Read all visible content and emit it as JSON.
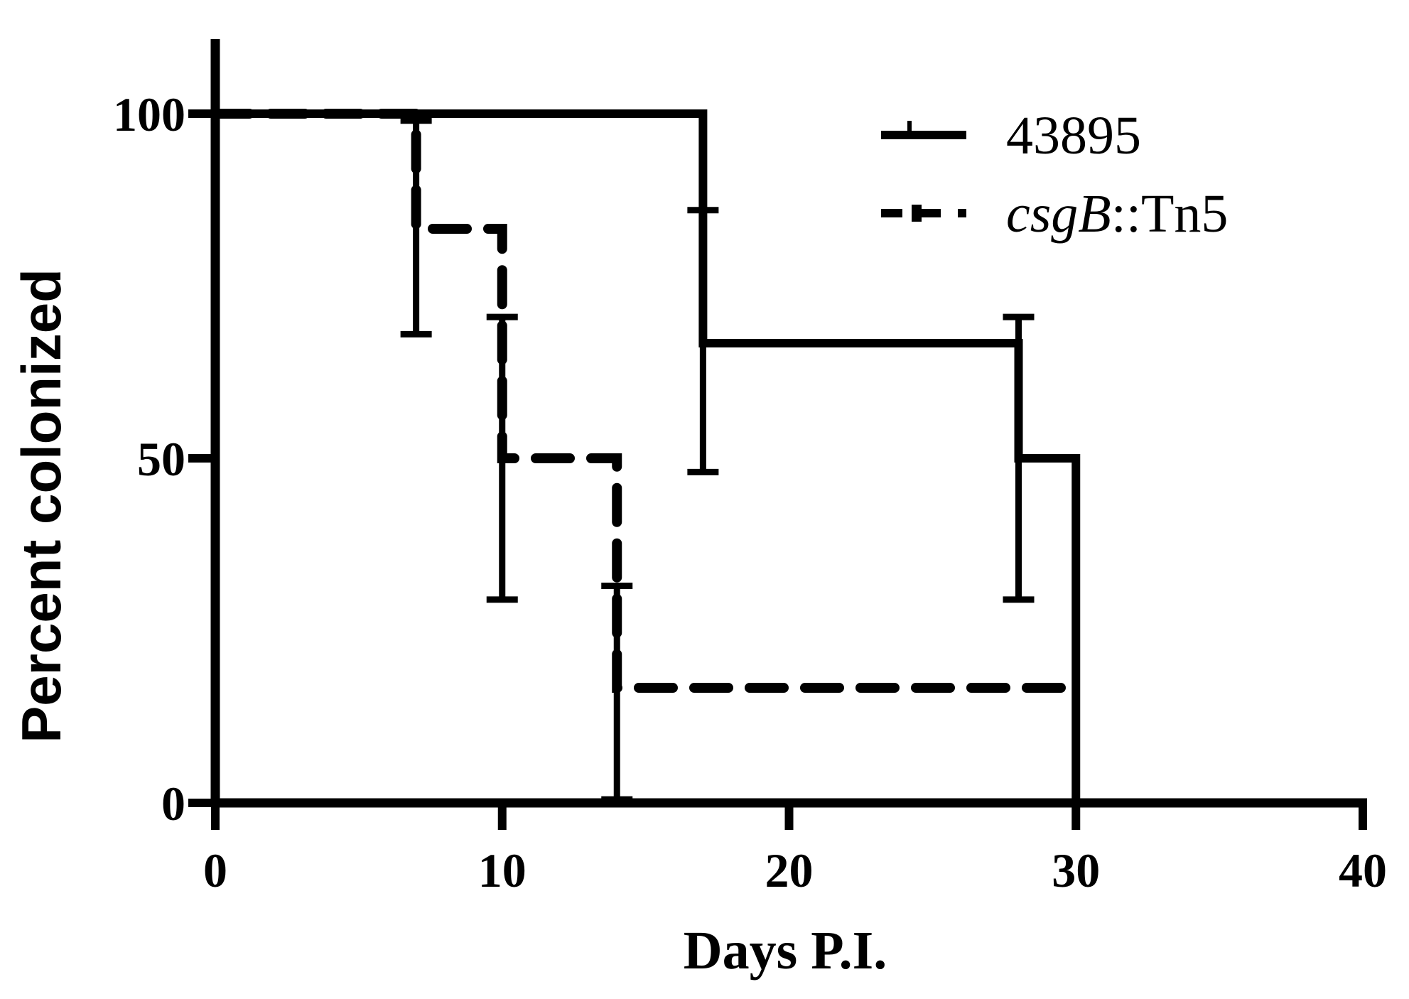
{
  "chart_data": {
    "type": "line",
    "subtype": "kaplan-meier-step",
    "title": "",
    "xlabel": "Days P.I.",
    "ylabel": "Percent colonized",
    "xlim": [
      0,
      40
    ],
    "ylim": [
      0,
      110
    ],
    "xticks": [
      0,
      10,
      20,
      30,
      40
    ],
    "yticks": [
      0,
      50,
      100
    ],
    "x_tick_labels": [
      "0",
      "10",
      "20",
      "30",
      "40"
    ],
    "y_tick_labels": [
      "0",
      "50",
      "100"
    ],
    "grid": false,
    "legend_position": "top-right",
    "series": [
      {
        "name": "43895",
        "legend_main": "43895",
        "legend_italic": "",
        "legend_rest": "",
        "line_style": "solid",
        "color": "#000000",
        "steps": [
          [
            0,
            100
          ],
          [
            17,
            100
          ],
          [
            17,
            66.7
          ],
          [
            28,
            66.7
          ],
          [
            28,
            50
          ],
          [
            30,
            50
          ],
          [
            30,
            0
          ]
        ],
        "error_bars": [
          {
            "x": 17,
            "low": 48,
            "high": 86
          },
          {
            "x": 28,
            "low": 29.5,
            "high": 70.5
          }
        ]
      },
      {
        "name": "csgB::Tn5",
        "legend_main": "",
        "legend_italic": "csgB",
        "legend_rest": "::Tn5",
        "line_style": "dashed",
        "color": "#000000",
        "steps": [
          [
            0,
            100
          ],
          [
            7,
            100
          ],
          [
            7,
            83.3
          ],
          [
            10,
            83.3
          ],
          [
            10,
            50
          ],
          [
            14,
            50
          ],
          [
            14,
            16.7
          ],
          [
            30,
            16.7
          ]
        ],
        "error_bars": [
          {
            "x": 7,
            "low": 68,
            "high": 99
          },
          {
            "x": 10,
            "low": 29.5,
            "high": 70.5
          },
          {
            "x": 14,
            "low": 0.5,
            "high": 31.5
          }
        ]
      }
    ]
  }
}
